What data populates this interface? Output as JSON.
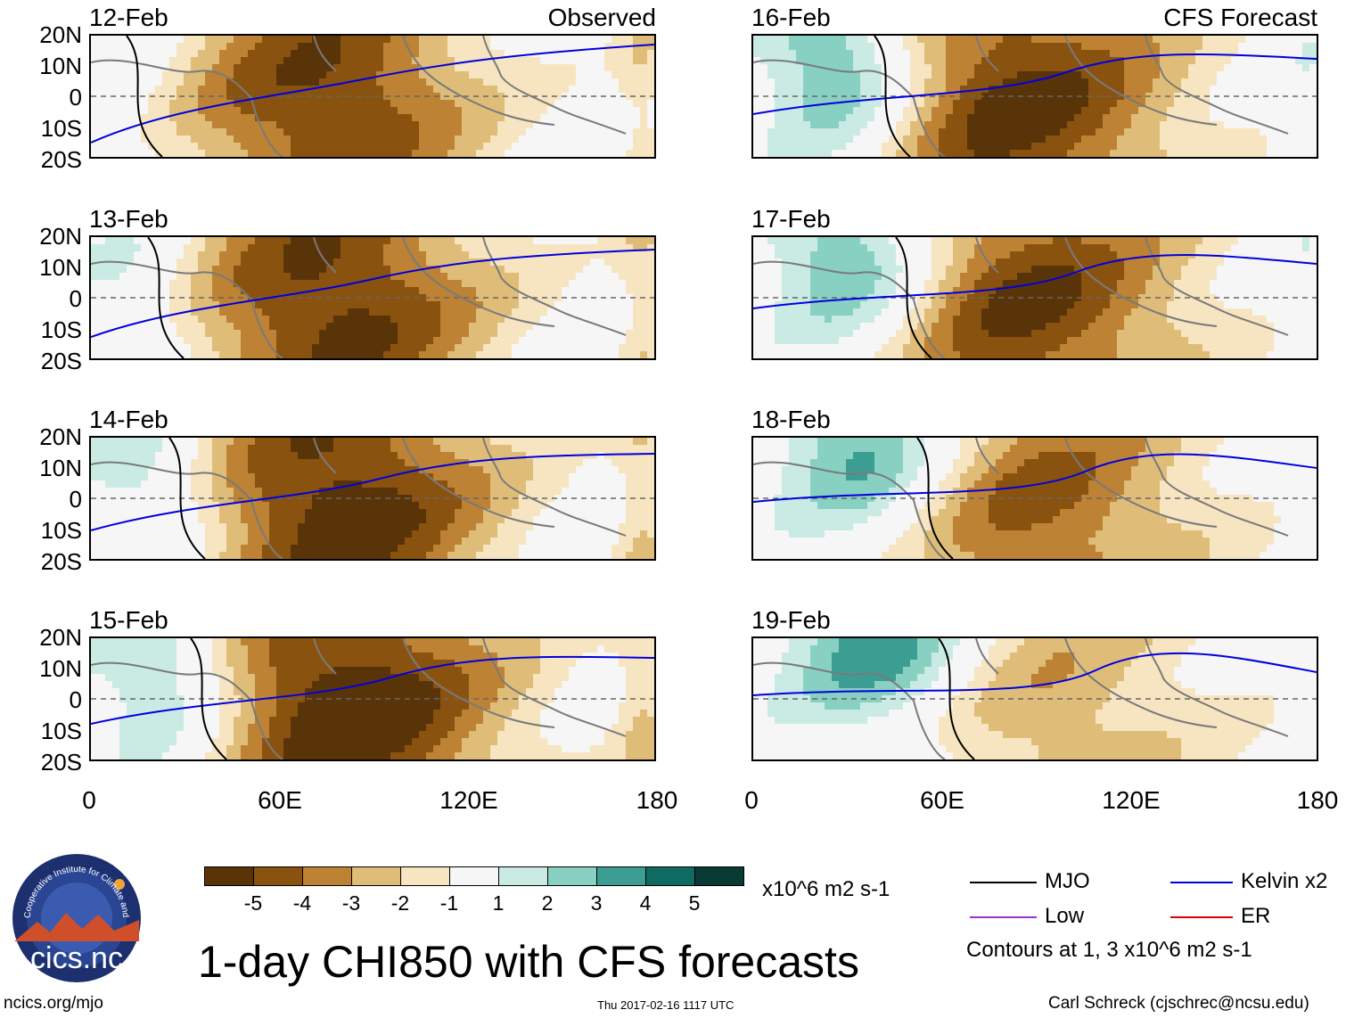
{
  "headers": {
    "observed": "Observed",
    "forecast": "CFS Forecast"
  },
  "panels_left": [
    {
      "date": "12-Feb",
      "intensity": 0.95,
      "phase": 0.0
    },
    {
      "date": "13-Feb",
      "intensity": 1.0,
      "phase": 0.2
    },
    {
      "date": "14-Feb",
      "intensity": 1.05,
      "phase": 0.4
    },
    {
      "date": "15-Feb",
      "intensity": 1.1,
      "phase": 0.6
    }
  ],
  "panels_right": [
    {
      "date": "16-Feb",
      "intensity": 1.0,
      "phase": 0.8
    },
    {
      "date": "17-Feb",
      "intensity": 0.95,
      "phase": 1.0
    },
    {
      "date": "18-Feb",
      "intensity": 0.8,
      "phase": 1.2
    },
    {
      "date": "19-Feb",
      "intensity": 0.55,
      "phase": 1.4
    }
  ],
  "lat_labels": [
    "20N",
    "10N",
    "0",
    "10S",
    "20S"
  ],
  "lon_labels": [
    "0",
    "60E",
    "120E",
    "180"
  ],
  "colorbar": {
    "colors": [
      "#5a3409",
      "#8a520f",
      "#bd8233",
      "#dfbd79",
      "#f6e5c0",
      "#f6f6f6",
      "#c9ebe4",
      "#88d1c2",
      "#3c9e93",
      "#0f6b61",
      "#0a3a34"
    ],
    "ticks": [
      "-5",
      "-4",
      "-3",
      "-2",
      "-1",
      "1",
      "2",
      "3",
      "4",
      "5"
    ],
    "units": "x10^6 m2 s-1"
  },
  "legend": {
    "mjo": {
      "label": "MJO",
      "color": "#000000"
    },
    "kelvin": {
      "label": "Kelvin x2",
      "color": "#0000dd"
    },
    "low": {
      "label": "Low",
      "color": "#9933cc"
    },
    "er": {
      "label": "ER",
      "color": "#dd0000"
    },
    "contours_note": "Contours at 1, 3 x10^6 m2 s-1"
  },
  "logo": {
    "text": "cics.nc",
    "arc_text": "Cooperative Institute for Climate and Satellites"
  },
  "main_title": "1-day CHI850 with CFS forecasts",
  "footer": {
    "left": "ncics.org/mjo",
    "center": "Thu 2017-02-16 1117 UTC",
    "right": "Carl Schreck (cjschrec@ncsu.edu)"
  },
  "chart_data": {
    "type": "heatmap",
    "title": "1-day CHI850 with CFS forecasts",
    "variable": "CHI850 (850 hPa velocity potential)",
    "units": "x10^6 m2 s-1",
    "x_range": [
      0,
      180
    ],
    "y_range": [
      -20,
      20
    ],
    "levels": [
      -5,
      -4,
      -3,
      -2,
      -1,
      1,
      2,
      3,
      4,
      5
    ],
    "observed_panels": [
      "12-Feb",
      "13-Feb",
      "14-Feb",
      "15-Feb"
    ],
    "forecast_panels": [
      "16-Feb",
      "17-Feb",
      "18-Feb",
      "19-Feb"
    ],
    "contours": [
      "MJO",
      "Kelvin x2",
      "Low",
      "ER"
    ]
  }
}
